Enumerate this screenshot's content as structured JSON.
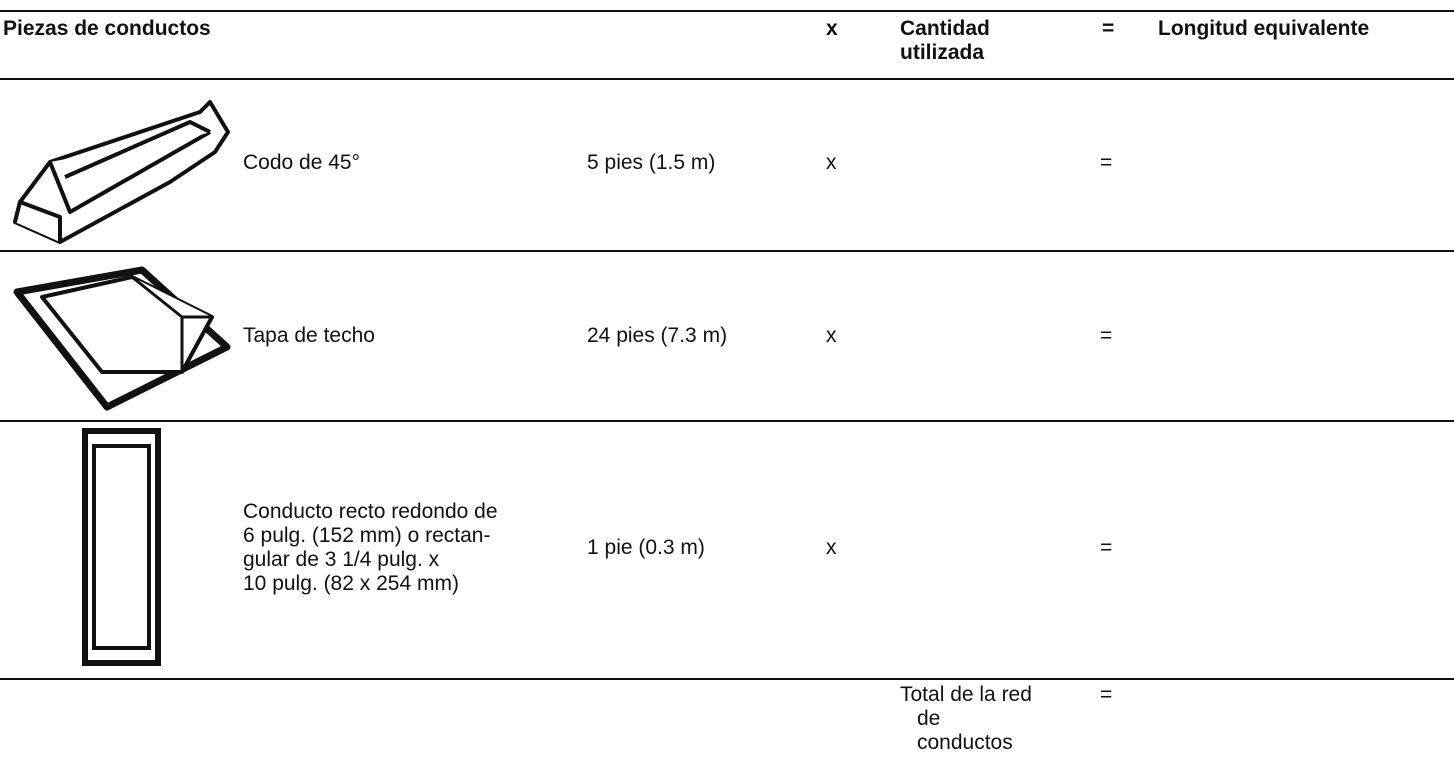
{
  "header": {
    "columns": [
      "Piezas de conductos",
      "x",
      "Cantidad utilizada",
      "=",
      "Longitud equivalente"
    ]
  },
  "table": {
    "rows": [
      {
        "name": [
          "Codo de 45°"
        ],
        "length": "5 pies (1.5 m)",
        "times": "x",
        "equals": "="
      },
      {
        "name": [
          "Tapa de techo"
        ],
        "length": "24 pies (7.3 m)",
        "times": "x",
        "equals": "="
      },
      {
        "name": [
          "Conducto recto redondo de",
          "6 pulg. (152 mm) o rectan-",
          "gular de 3 1/4 pulg. x",
          "10 pulg. (82 x 254 mm)"
        ],
        "length": "1 pie (0.3 m)",
        "times": "x",
        "equals": "="
      }
    ]
  },
  "total": {
    "label": [
      "Total de la red",
      "de",
      "conductos"
    ],
    "equals": "="
  }
}
